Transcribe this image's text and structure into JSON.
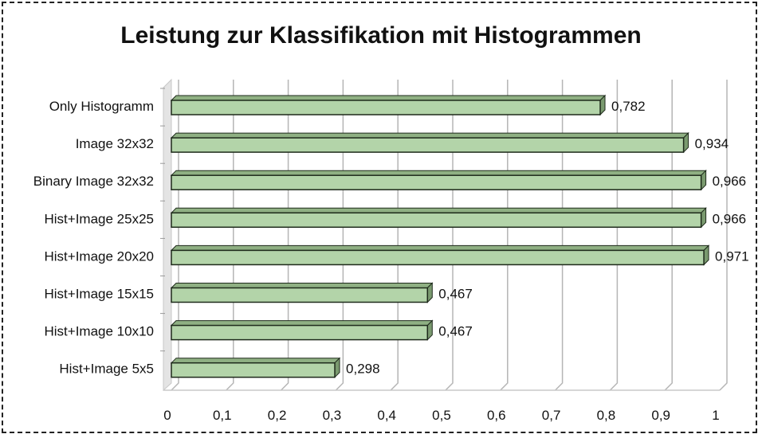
{
  "chart_data": {
    "type": "bar",
    "orientation": "horizontal",
    "title": "Leistung zur Klassifikation mit Histogrammen",
    "categories": [
      "Only Histogramm",
      "Image 32x32",
      "Binary Image 32x32",
      "Hist+Image 25x25",
      "Hist+Image 20x20",
      "Hist+Image 15x15",
      "Hist+Image 10x10",
      "Hist+Image 5x5"
    ],
    "values": [
      0.782,
      0.934,
      0.966,
      0.966,
      0.971,
      0.467,
      0.467,
      0.298
    ],
    "value_labels": [
      "0,782",
      "0,934",
      "0,966",
      "0,966",
      "0,971",
      "0,467",
      "0,467",
      "0,298"
    ],
    "xticks": [
      "0",
      "0,1",
      "0,2",
      "0,3",
      "0,4",
      "0,5",
      "0,6",
      "0,7",
      "0,8",
      "0,9",
      "1"
    ],
    "xlim": [
      0,
      1
    ],
    "grid": true,
    "legend": "none",
    "colors": {
      "bar_fill": "#b3d4a9",
      "bar_top": "#8fb083",
      "bar_side": "#7a9a6f",
      "bar_stroke": "#1e2a1b"
    }
  }
}
